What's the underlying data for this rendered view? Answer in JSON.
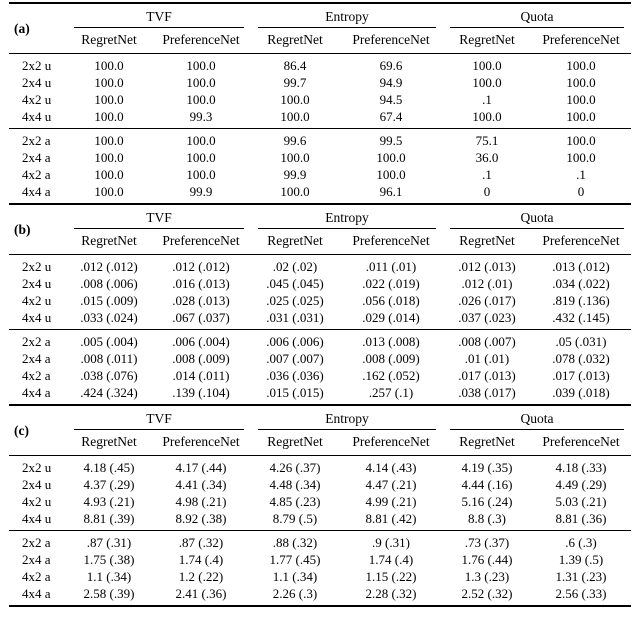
{
  "table": {
    "sections": [
      {
        "label": "(a)",
        "groups": [
          {
            "label": "TVF"
          },
          {
            "label": "Entropy"
          },
          {
            "label": "Quota"
          }
        ],
        "columns": [
          "RegretNet",
          "PreferenceNet",
          "RegretNet",
          "PreferenceNet",
          "RegretNet",
          "PreferenceNet"
        ],
        "blocks": [
          {
            "rows": [
              {
                "label": "2x2 u",
                "values": [
                  "100.0",
                  "100.0",
                  "86.4",
                  "69.6",
                  "100.0",
                  "100.0"
                ]
              },
              {
                "label": "2x4 u",
                "values": [
                  "100.0",
                  "100.0",
                  "99.7",
                  "94.9",
                  "100.0",
                  "100.0"
                ]
              },
              {
                "label": "4x2 u",
                "values": [
                  "100.0",
                  "100.0",
                  "100.0",
                  "94.5",
                  ".1",
                  "100.0"
                ]
              },
              {
                "label": "4x4 u",
                "values": [
                  "100.0",
                  "99.3",
                  "100.0",
                  "67.4",
                  "100.0",
                  "100.0"
                ]
              }
            ]
          },
          {
            "rows": [
              {
                "label": "2x2 a",
                "values": [
                  "100.0",
                  "100.0",
                  "99.6",
                  "99.5",
                  "75.1",
                  "100.0"
                ]
              },
              {
                "label": "2x4 a",
                "values": [
                  "100.0",
                  "100.0",
                  "100.0",
                  "100.0",
                  "36.0",
                  "100.0"
                ]
              },
              {
                "label": "4x2 a",
                "values": [
                  "100.0",
                  "100.0",
                  "99.9",
                  "100.0",
                  ".1",
                  ".1"
                ]
              },
              {
                "label": "4x4 a",
                "values": [
                  "100.0",
                  "99.9",
                  "100.0",
                  "96.1",
                  "0",
                  "0"
                ]
              }
            ]
          }
        ]
      },
      {
        "label": "(b)",
        "groups": [
          {
            "label": "TVF"
          },
          {
            "label": "Entropy"
          },
          {
            "label": "Quota"
          }
        ],
        "columns": [
          "RegretNet",
          "PreferenceNet",
          "RegretNet",
          "PreferenceNet",
          "RegretNet",
          "PreferenceNet"
        ],
        "blocks": [
          {
            "rows": [
              {
                "label": "2x2 u",
                "values": [
                  ".012 (.012)",
                  ".012 (.012)",
                  ".02 (.02)",
                  ".011 (.01)",
                  ".012 (.013)",
                  ".013 (.012)"
                ]
              },
              {
                "label": "2x4 u",
                "values": [
                  ".008 (.006)",
                  ".016 (.013)",
                  ".045 (.045)",
                  ".022 (.019)",
                  ".012 (.01)",
                  ".034 (.022)"
                ]
              },
              {
                "label": "4x2 u",
                "values": [
                  ".015 (.009)",
                  ".028 (.013)",
                  ".025 (.025)",
                  ".056 (.018)",
                  ".026 (.017)",
                  ".819 (.136)"
                ]
              },
              {
                "label": "4x4 u",
                "values": [
                  ".033 (.024)",
                  ".067 (.037)",
                  ".031 (.031)",
                  ".029 (.014)",
                  ".037 (.023)",
                  ".432 (.145)"
                ]
              }
            ]
          },
          {
            "rows": [
              {
                "label": "2x2 a",
                "values": [
                  ".005 (.004)",
                  ".006 (.004)",
                  ".006 (.006)",
                  ".013 (.008)",
                  ".008 (.007)",
                  ".05 (.031)"
                ]
              },
              {
                "label": "2x4 a",
                "values": [
                  ".008 (.011)",
                  ".008 (.009)",
                  ".007 (.007)",
                  ".008 (.009)",
                  ".01 (.01)",
                  ".078 (.032)"
                ]
              },
              {
                "label": "4x2 a",
                "values": [
                  ".038 (.076)",
                  ".014 (.011)",
                  ".036 (.036)",
                  ".162 (.052)",
                  ".017 (.013)",
                  ".017 (.013)"
                ]
              },
              {
                "label": "4x4 a",
                "values": [
                  ".424 (.324)",
                  ".139 (.104)",
                  ".015 (.015)",
                  ".257 (.1)",
                  ".038 (.017)",
                  ".039 (.018)"
                ]
              }
            ]
          }
        ]
      },
      {
        "label": "(c)",
        "groups": [
          {
            "label": "TVF"
          },
          {
            "label": "Entropy"
          },
          {
            "label": "Quota"
          }
        ],
        "columns": [
          "RegretNet",
          "PreferenceNet",
          "RegretNet",
          "PreferenceNet",
          "RegretNet",
          "PreferenceNet"
        ],
        "blocks": [
          {
            "rows": [
              {
                "label": "2x2 u",
                "values": [
                  "4.18 (.45)",
                  "4.17 (.44)",
                  "4.26 (.37)",
                  "4.14 (.43)",
                  "4.19 (.35)",
                  "4.18 (.33)"
                ]
              },
              {
                "label": "2x4 u",
                "values": [
                  "4.37 (.29)",
                  "4.41 (.34)",
                  "4.48 (.34)",
                  "4.47 (.21)",
                  "4.44 (.16)",
                  "4.49 (.29)"
                ]
              },
              {
                "label": "4x2 u",
                "values": [
                  "4.93 (.21)",
                  "4.98 (.21)",
                  "4.85 (.23)",
                  "4.99 (.21)",
                  "5.16 (.24)",
                  "5.03 (.21)"
                ]
              },
              {
                "label": "4x4 u",
                "values": [
                  "8.81 (.39)",
                  "8.92 (.38)",
                  "8.79 (.5)",
                  "8.81 (.42)",
                  "8.8 (.3)",
                  "8.81 (.36)"
                ]
              }
            ]
          },
          {
            "rows": [
              {
                "label": "2x2 a",
                "values": [
                  ".87 (.31)",
                  ".87 (.32)",
                  ".88 (.32)",
                  ".9 (.31)",
                  ".73 (.37)",
                  ".6 (.3)"
                ]
              },
              {
                "label": "2x4 a",
                "values": [
                  "1.75 (.38)",
                  "1.74 (.4)",
                  "1.77 (.45)",
                  "1.74 (.4)",
                  "1.76 (.44)",
                  "1.39 (.5)"
                ]
              },
              {
                "label": "4x2 a",
                "values": [
                  "1.1 (.34)",
                  "1.2 (.22)",
                  "1.1 (.34)",
                  "1.15 (.22)",
                  "1.3 (.23)",
                  "1.31 (.23)"
                ]
              },
              {
                "label": "4x4 a",
                "values": [
                  "2.58 (.39)",
                  "2.41 (.36)",
                  "2.26 (.3)",
                  "2.28 (.32)",
                  "2.52 (.32)",
                  "2.56 (.33)"
                ]
              }
            ]
          }
        ]
      }
    ]
  }
}
